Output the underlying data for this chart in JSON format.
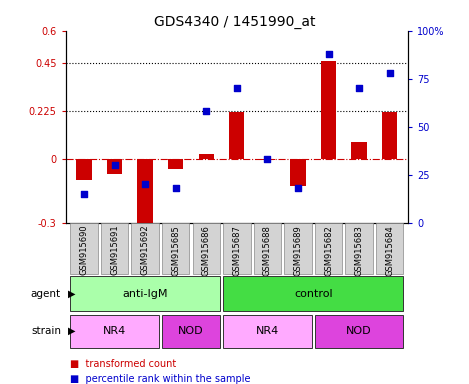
{
  "title": "GDS4340 / 1451990_at",
  "samples": [
    "GSM915690",
    "GSM915691",
    "GSM915692",
    "GSM915685",
    "GSM915686",
    "GSM915687",
    "GSM915688",
    "GSM915689",
    "GSM915682",
    "GSM915683",
    "GSM915684"
  ],
  "bar_values": [
    -0.1,
    -0.07,
    -0.3,
    -0.05,
    0.02,
    0.22,
    -0.005,
    -0.13,
    0.46,
    0.08,
    0.22
  ],
  "dot_values": [
    15,
    30,
    20,
    18,
    58,
    70,
    33,
    18,
    88,
    70,
    78
  ],
  "ylim_left": [
    -0.3,
    0.6
  ],
  "ylim_right": [
    0,
    100
  ],
  "yticks_left": [
    -0.3,
    0,
    0.225,
    0.45,
    0.6
  ],
  "ytick_labels_left": [
    "-0.3",
    "0",
    "0.225",
    "0.45",
    "0.6"
  ],
  "yticks_right": [
    0,
    25,
    50,
    75,
    100
  ],
  "ytick_labels_right": [
    "0",
    "25",
    "50",
    "75",
    "100%"
  ],
  "hlines": [
    0.225,
    0.45
  ],
  "bar_color": "#cc0000",
  "dot_color": "#0000cc",
  "agent_groups": [
    {
      "label": "anti-IgM",
      "start": 0,
      "end": 4,
      "color": "#aaffaa"
    },
    {
      "label": "control",
      "start": 5,
      "end": 10,
      "color": "#44dd44"
    }
  ],
  "strain_groups": [
    {
      "label": "NR4",
      "start": 0,
      "end": 2,
      "color": "#ffaaff"
    },
    {
      "label": "NOD",
      "start": 3,
      "end": 4,
      "color": "#dd44dd"
    },
    {
      "label": "NR4",
      "start": 5,
      "end": 7,
      "color": "#ffaaff"
    },
    {
      "label": "NOD",
      "start": 8,
      "end": 10,
      "color": "#dd44dd"
    }
  ],
  "agent_label": "agent",
  "strain_label": "strain",
  "legend_items": [
    {
      "label": "transformed count",
      "color": "#cc0000"
    },
    {
      "label": "percentile rank within the sample",
      "color": "#0000cc"
    }
  ],
  "background_color": "#ffffff",
  "plot_bg": "#ffffff",
  "tick_bg": "#d3d3d3",
  "tick_edge": "#888888"
}
